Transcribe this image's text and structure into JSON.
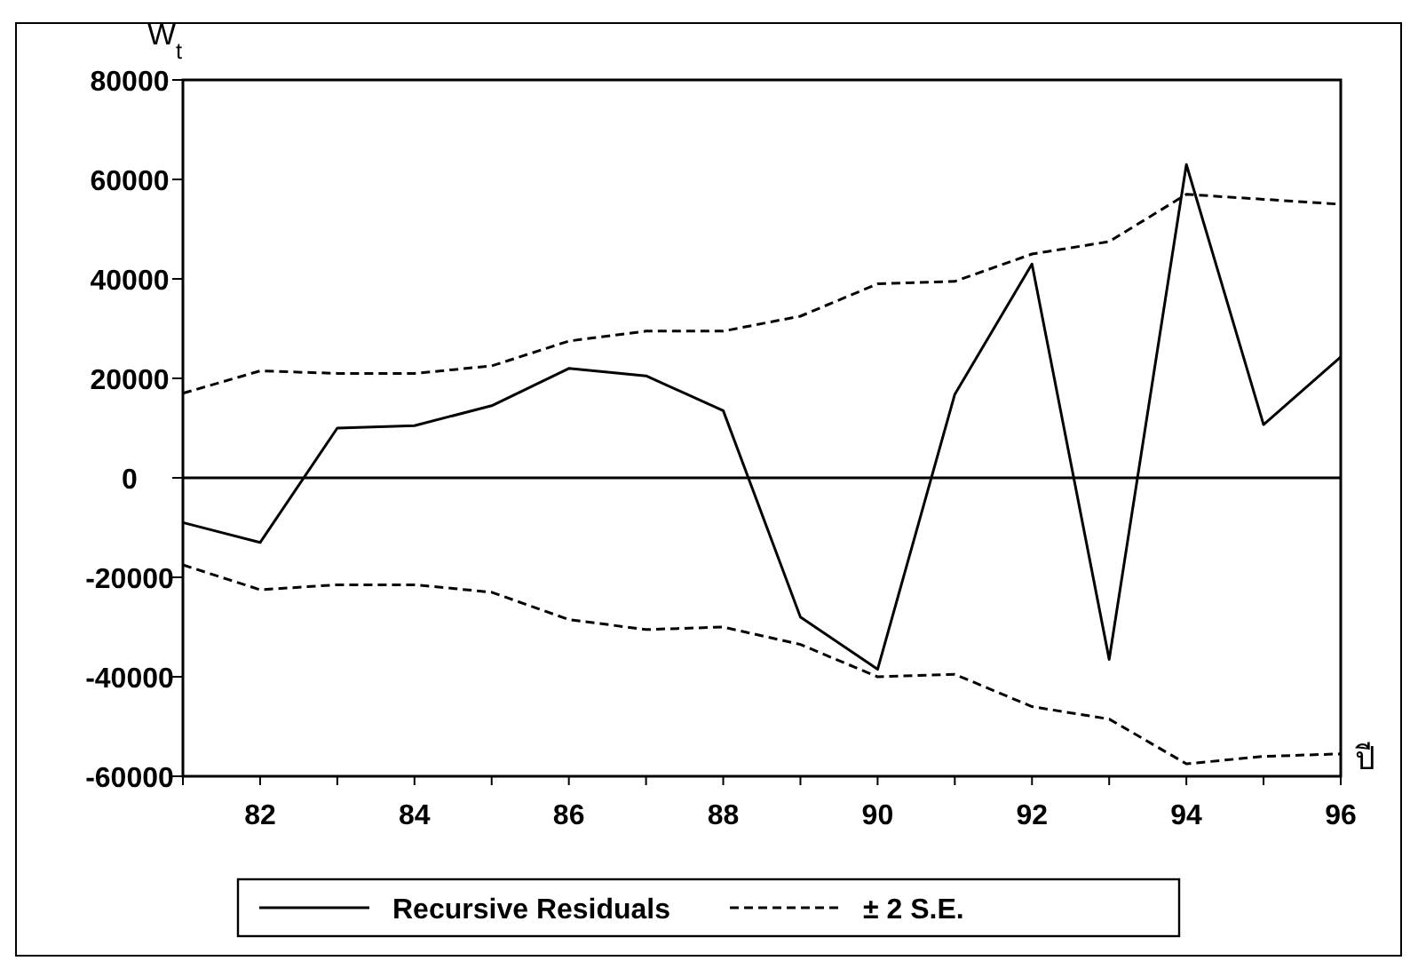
{
  "chart_data": {
    "type": "line",
    "ylabel": "W$_{t}$",
    "xlabel": "ปี",
    "x": [
      81,
      82,
      83,
      84,
      85,
      86,
      87,
      88,
      89,
      90,
      91,
      92,
      93,
      94,
      95,
      96
    ],
    "xlim": [
      81,
      96
    ],
    "xticks": [
      {
        "value": 81,
        "label": null
      },
      82,
      {
        "value": 83,
        "label": null
      },
      84,
      {
        "value": 85,
        "label": null
      },
      86,
      {
        "value": 87,
        "label": null
      },
      88,
      {
        "value": 89,
        "label": null
      },
      90,
      {
        "value": 91,
        "label": null
      },
      92,
      {
        "value": 93,
        "label": null
      },
      94,
      {
        "value": 95,
        "label": null
      },
      96
    ],
    "ylim": [
      -60000,
      80000
    ],
    "yticks": [
      {
        "value": -60000,
        "label": "-60000"
      },
      {
        "value": -40000,
        "label": "-40000"
      },
      {
        "value": -20000,
        "label": "-20000"
      },
      0,
      20000,
      40000,
      60000,
      80000
    ],
    "series": [
      {
        "name": "Recursive Residuals",
        "color": "#000000",
        "line_style": "solid",
        "values": [
          -9000,
          -13000,
          10000,
          10500,
          14500,
          22000,
          20500,
          13500,
          -28000,
          -38500,
          16800,
          43000,
          -36500,
          63000,
          10700,
          24300
        ]
      },
      {
        "name": "± 2 S.E.",
        "color": "#000000",
        "line_style": "dashed",
        "values": [
          17000,
          21500,
          21000,
          21000,
          22500,
          27500,
          29500,
          29500,
          32500,
          39000,
          39500,
          45000,
          47500,
          57000,
          56000,
          55000
        ]
      },
      {
        "color": "#000000",
        "line_style": "dashed",
        "values": [
          -17500,
          -22500,
          -21500,
          -21500,
          -23000,
          -28500,
          -30500,
          -30000,
          -33500,
          -40000,
          -39500,
          -46000,
          -48500,
          -57500,
          -56000,
          -55500
        ]
      }
    ],
    "ref_lines": [
      {
        "axis": "y",
        "value": 0,
        "color": "#000000",
        "line_style": "solid"
      }
    ],
    "legend": "bottom",
    "grid": false,
    "marker": "none"
  }
}
